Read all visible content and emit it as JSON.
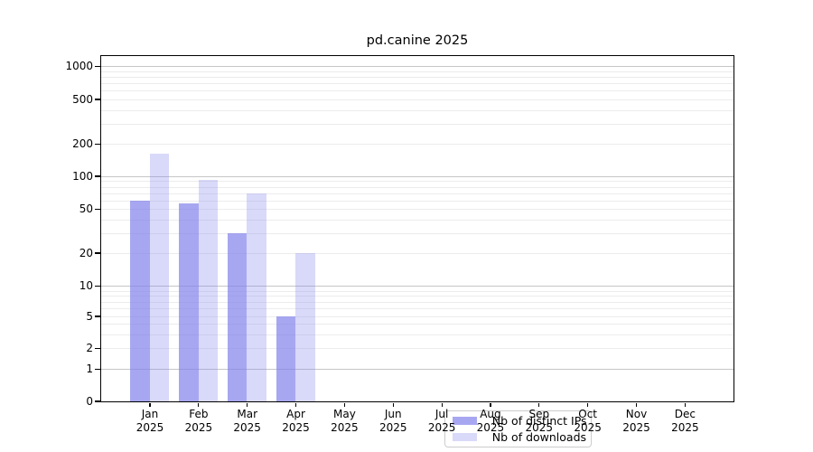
{
  "title": "pd.canine 2025",
  "legend": {
    "items": [
      {
        "label": "Nb of distinct IPs",
        "color": "rgba(130,130,235,0.7)"
      },
      {
        "label": "Nb of downloads",
        "color": "rgba(130,130,235,0.3)"
      }
    ]
  },
  "y_axis": {
    "ticks": [
      1000,
      500,
      200,
      100,
      50,
      20,
      10,
      5,
      2,
      1,
      0
    ]
  },
  "x_axis": {
    "months": [
      "Jan",
      "Feb",
      "Mar",
      "Apr",
      "May",
      "Jun",
      "Jul",
      "Aug",
      "Sep",
      "Oct",
      "Nov",
      "Dec"
    ],
    "year": "2025"
  },
  "chart_data": {
    "type": "bar",
    "title": "pd.canine 2025",
    "xlabel": "",
    "ylabel": "",
    "yscale": "symlog",
    "ylim": [
      0,
      1250
    ],
    "grid": true,
    "legend_position": "lower center",
    "categories": [
      "Jan 2025",
      "Feb 2025",
      "Mar 2025",
      "Apr 2025",
      "May 2025",
      "Jun 2025",
      "Jul 2025",
      "Aug 2025",
      "Sep 2025",
      "Oct 2025",
      "Nov 2025",
      "Dec 2025"
    ],
    "series": [
      {
        "name": "Nb of distinct IPs",
        "color": "rgba(130,130,235,0.7)",
        "values": [
          60,
          57,
          30,
          5,
          null,
          null,
          null,
          null,
          null,
          null,
          null,
          null
        ]
      },
      {
        "name": "Nb of downloads",
        "color": "rgba(130,130,235,0.3)",
        "values": [
          162,
          92,
          69,
          20,
          null,
          null,
          null,
          null,
          null,
          null,
          null,
          null
        ]
      }
    ]
  }
}
